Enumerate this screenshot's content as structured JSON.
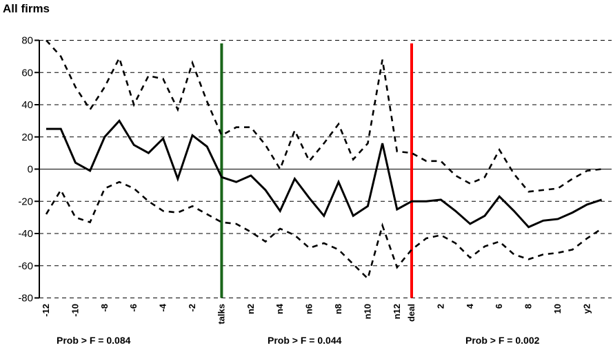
{
  "title": "All firms",
  "annotations": {
    "pre": {
      "text": "Prob > F = 0.084"
    },
    "mid": {
      "text": "Prob > F = 0.044"
    },
    "post": {
      "text": "Prob > F = 0.002"
    }
  },
  "colors": {
    "line": "#000000",
    "band": "#000000",
    "talks_line": "#1a661a",
    "deal_line": "#ff0000",
    "grid": "#000000",
    "background": "#ffffff"
  },
  "chart_data": {
    "type": "line",
    "title": "All firms",
    "xlabel": "",
    "ylabel": "",
    "ylim": [
      -80,
      80
    ],
    "y_ticks": [
      80,
      60,
      40,
      20,
      0,
      -20,
      -40,
      -60,
      -80
    ],
    "grid": "horizontal dashed gridlines every 20, solid line at 0, no legend",
    "x_count": 39,
    "x_tick_labels": [
      {
        "index": 0,
        "label": "-12"
      },
      {
        "index": 2,
        "label": "-10"
      },
      {
        "index": 4,
        "label": "-8"
      },
      {
        "index": 6,
        "label": "-6"
      },
      {
        "index": 8,
        "label": "-4"
      },
      {
        "index": 10,
        "label": "-2"
      },
      {
        "index": 12,
        "label": "talks"
      },
      {
        "index": 14,
        "label": "n2"
      },
      {
        "index": 16,
        "label": "n4"
      },
      {
        "index": 18,
        "label": "n6"
      },
      {
        "index": 20,
        "label": "n8"
      },
      {
        "index": 22,
        "label": "n10"
      },
      {
        "index": 24,
        "label": "n12"
      },
      {
        "index": 25,
        "label": "deal"
      },
      {
        "index": 27,
        "label": "2"
      },
      {
        "index": 29,
        "label": "4"
      },
      {
        "index": 31,
        "label": "6"
      },
      {
        "index": 33,
        "label": "8"
      },
      {
        "index": 35,
        "label": "10"
      },
      {
        "index": 37,
        "label": "y2"
      }
    ],
    "event_lines": [
      {
        "label": "talks",
        "index": 12,
        "color": "#1a661a"
      },
      {
        "label": "deal",
        "index": 25,
        "color": "#ff0000"
      }
    ],
    "series": [
      {
        "name": "solid_line",
        "style": "solid",
        "values": [
          25,
          25,
          4,
          -1,
          20,
          30,
          15,
          10,
          19,
          -6,
          21,
          14,
          -5,
          -8,
          -4,
          -13,
          -26,
          -6,
          -18,
          -29,
          -8,
          -29,
          -23,
          16,
          -25,
          -20,
          -20,
          -19,
          -26,
          -34,
          -29,
          -17,
          -26,
          -36,
          -32,
          -31,
          -27,
          -22,
          -19
        ]
      },
      {
        "name": "upper_dashed_band",
        "style": "dashed",
        "values": [
          80,
          70,
          51,
          37,
          51,
          69,
          40,
          58,
          56,
          37,
          66,
          42,
          21,
          26,
          26,
          15,
          0,
          24,
          5,
          16,
          28,
          6,
          16,
          68,
          11,
          10,
          5,
          5,
          -4,
          -9,
          -5,
          12,
          -3,
          -14,
          -13,
          -12,
          -6,
          -1,
          0
        ]
      },
      {
        "name": "lower_dashed_band",
        "style": "dashed",
        "values": [
          -28,
          -13,
          -30,
          -33,
          -12,
          -8,
          -12,
          -20,
          -26,
          -27,
          -23,
          -28,
          -33,
          -34,
          -39,
          -45,
          -37,
          -41,
          -49,
          -46,
          -50,
          -59,
          -68,
          -35,
          -61,
          -50,
          -43,
          -41,
          -46,
          -55,
          -48,
          -45,
          -53,
          -56,
          -53,
          -52,
          -50,
          -43,
          -37
        ]
      }
    ],
    "annotations": [
      {
        "text": "Prob > F = 0.084",
        "region": "before talks"
      },
      {
        "text": "Prob > F = 0.044",
        "region": "between talks and deal"
      },
      {
        "text": "Prob > F = 0.002",
        "region": "after deal"
      }
    ]
  }
}
